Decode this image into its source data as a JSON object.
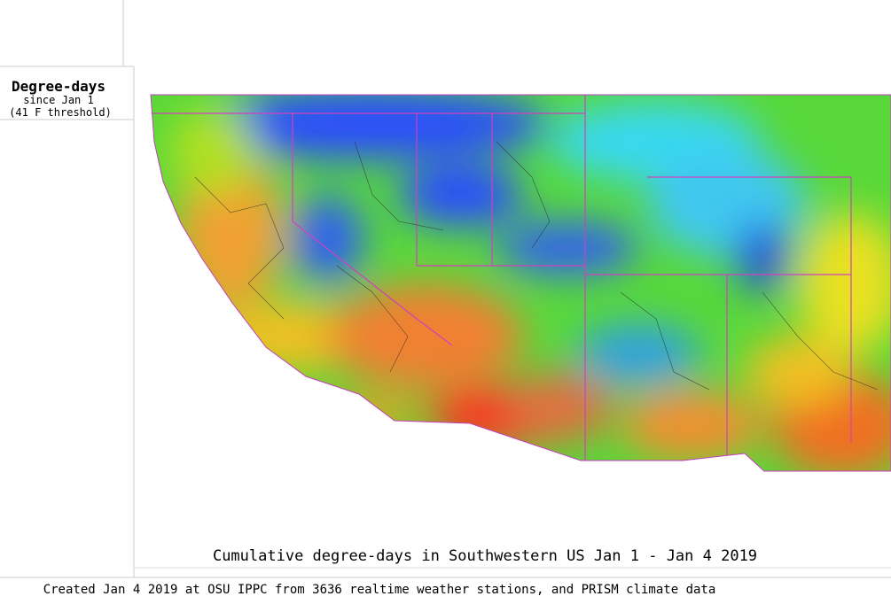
{
  "legend": {
    "title": "Degree-days",
    "subtitle": "since Jan 1",
    "threshold": "(41 F threshold)"
  },
  "map": {
    "title": "Cumulative degree-days in Southwestern US Jan 1 - Jan 4 2019"
  },
  "footer": {
    "credit": "Created Jan 4 2019 at OSU IPPC from 3636 realtime weather stations, and PRISM climate data"
  }
}
